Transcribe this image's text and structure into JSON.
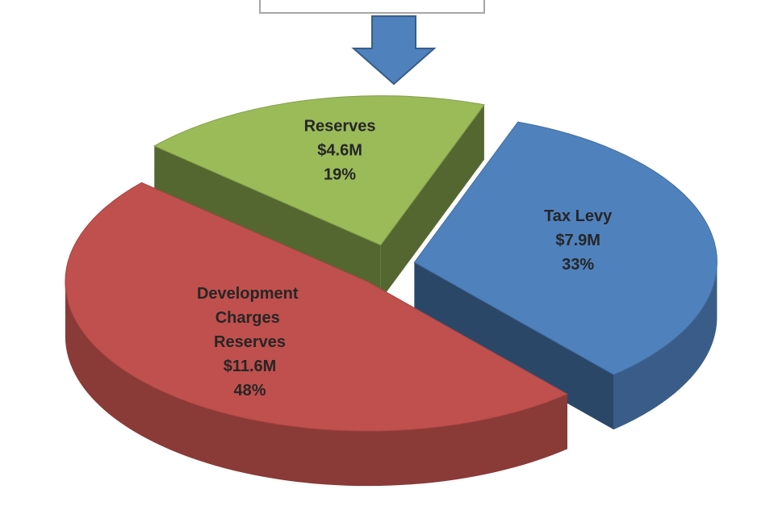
{
  "chart_data": {
    "type": "pie",
    "categories": [
      "Tax Levy",
      "Development Charges Reserves",
      "Reserves"
    ],
    "values": [
      33,
      48,
      19
    ],
    "value_labels": [
      "33%",
      "48%",
      "19%"
    ],
    "amount_labels": [
      "$7.9M",
      "$11.6M",
      "$4.6M"
    ],
    "colors": [
      "#4f81bd",
      "#c0504d",
      "#9bbb59"
    ]
  }
}
